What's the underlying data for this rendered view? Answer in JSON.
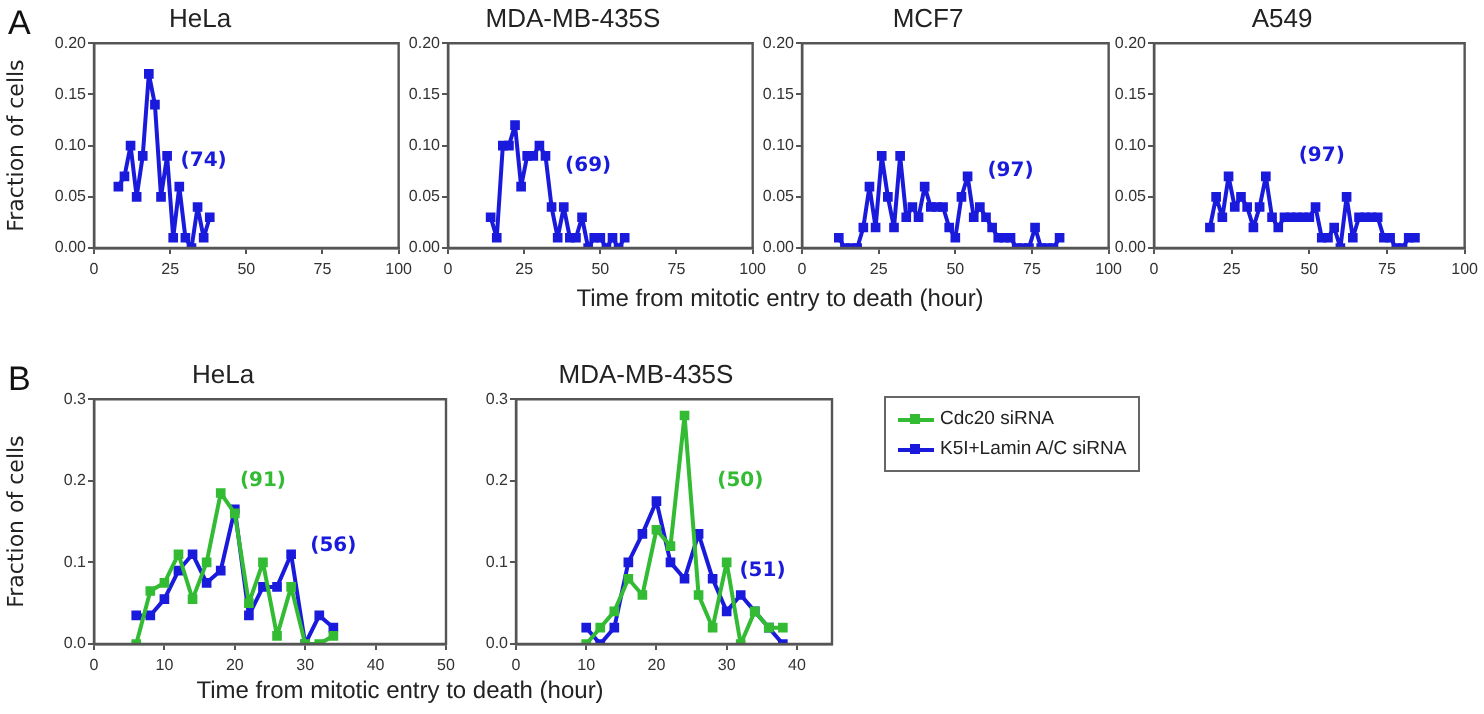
{
  "chart_data": [
    {
      "type": "line",
      "title": "HeLa",
      "ylabel": "Fraction of cells",
      "color": "#1a1adc",
      "marker": "square",
      "line_style": "solid",
      "grid": false,
      "legend": false,
      "x": [
        8,
        10,
        12,
        14,
        16,
        18,
        20,
        22,
        24,
        26,
        28,
        30,
        32,
        34,
        36,
        38
      ],
      "values": [
        0.06,
        0.07,
        0.1,
        0.05,
        0.09,
        0.17,
        0.14,
        0.05,
        0.09,
        0.01,
        0.06,
        0.01,
        0.0,
        0.04,
        0.01,
        0.03
      ],
      "xlim": [
        0,
        100
      ],
      "xticks": [
        0,
        25,
        50,
        75,
        100
      ],
      "ylim": [
        0,
        0.2
      ],
      "yticks": [
        {
          "value": 0,
          "label": "0.00"
        },
        {
          "value": 0.05,
          "label": "0.05"
        },
        {
          "value": 0.1,
          "label": "0.10"
        },
        {
          "value": 0.15,
          "label": "0.15"
        },
        {
          "value": 0.2,
          "label": "0.20"
        }
      ],
      "annotations": [
        "A",
        "(74)"
      ]
    },
    {
      "type": "line",
      "title": "MDA-MB-435S",
      "xlabel": "Time from mitotic entry to death (hour)",
      "color": "#1a1adc",
      "marker": "square",
      "line_style": "solid",
      "grid": false,
      "legend": false,
      "x": [
        14,
        16,
        18,
        20,
        22,
        24,
        26,
        28,
        30,
        32,
        34,
        36,
        38,
        40,
        42,
        44,
        46,
        48,
        50,
        52,
        54,
        56,
        58
      ],
      "values": [
        0.03,
        0.01,
        0.1,
        0.1,
        0.12,
        0.06,
        0.09,
        0.09,
        0.1,
        0.09,
        0.04,
        0.01,
        0.04,
        0.01,
        0.01,
        0.03,
        0.0,
        0.01,
        0.01,
        0.0,
        0.01,
        0.0,
        0.01
      ],
      "xlim": [
        0,
        100
      ],
      "xticks": [
        0,
        25,
        50,
        75,
        100
      ],
      "ylim": [
        0,
        0.2
      ],
      "yticks": [
        {
          "value": 0,
          "label": "0.00"
        },
        {
          "value": 0.05,
          "label": "0.05"
        },
        {
          "value": 0.1,
          "label": "0.10"
        },
        {
          "value": 0.15,
          "label": "0.15"
        },
        {
          "value": 0.2,
          "label": "0.20"
        }
      ],
      "annotations": [
        "(69)"
      ]
    },
    {
      "type": "line",
      "title": "MCF7",
      "color": "#1a1adc",
      "marker": "square",
      "line_style": "solid",
      "grid": false,
      "legend": false,
      "x": [
        12,
        14,
        16,
        18,
        20,
        22,
        24,
        26,
        28,
        30,
        32,
        34,
        36,
        38,
        40,
        42,
        44,
        46,
        48,
        50,
        52,
        54,
        56,
        58,
        60,
        62,
        64,
        66,
        68,
        70,
        72,
        74,
        76,
        78,
        80,
        82,
        84
      ],
      "values": [
        0.01,
        0.0,
        0.0,
        0.0,
        0.02,
        0.06,
        0.02,
        0.09,
        0.05,
        0.02,
        0.09,
        0.03,
        0.04,
        0.03,
        0.06,
        0.04,
        0.04,
        0.04,
        0.02,
        0.01,
        0.05,
        0.07,
        0.03,
        0.04,
        0.03,
        0.02,
        0.01,
        0.01,
        0.01,
        0.0,
        0.0,
        0.0,
        0.02,
        0.0,
        0.0,
        0.0,
        0.01
      ],
      "xlim": [
        0,
        100
      ],
      "xticks": [
        0,
        25,
        50,
        75,
        100
      ],
      "ylim": [
        0,
        0.2
      ],
      "yticks": [
        {
          "value": 0,
          "label": "0.00"
        },
        {
          "value": 0.05,
          "label": "0.05"
        },
        {
          "value": 0.1,
          "label": "0.10"
        },
        {
          "value": 0.15,
          "label": "0.15"
        },
        {
          "value": 0.2,
          "label": "0.20"
        }
      ],
      "annotations": [
        "(97)"
      ]
    },
    {
      "type": "line",
      "title": "A549",
      "color": "#1a1adc",
      "marker": "square",
      "line_style": "solid",
      "grid": false,
      "legend": false,
      "x": [
        18,
        20,
        22,
        24,
        26,
        28,
        30,
        32,
        34,
        36,
        38,
        40,
        42,
        44,
        46,
        48,
        50,
        52,
        54,
        56,
        58,
        60,
        62,
        64,
        66,
        68,
        70,
        72,
        74,
        76,
        78,
        80,
        82,
        84
      ],
      "values": [
        0.02,
        0.05,
        0.03,
        0.07,
        0.04,
        0.05,
        0.04,
        0.02,
        0.04,
        0.07,
        0.03,
        0.02,
        0.03,
        0.03,
        0.03,
        0.03,
        0.03,
        0.04,
        0.01,
        0.01,
        0.02,
        0.0,
        0.05,
        0.01,
        0.03,
        0.03,
        0.03,
        0.03,
        0.01,
        0.01,
        0.0,
        0.0,
        0.01,
        0.01
      ],
      "xlim": [
        0,
        100
      ],
      "xticks": [
        0,
        25,
        50,
        75,
        100
      ],
      "ylim": [
        0,
        0.2
      ],
      "yticks": [
        {
          "value": 0,
          "label": "0.00"
        },
        {
          "value": 0.05,
          "label": "0.05"
        },
        {
          "value": 0.1,
          "label": "0.10"
        },
        {
          "value": 0.15,
          "label": "0.15"
        },
        {
          "value": 0.2,
          "label": "0.20"
        }
      ],
      "annotations": [
        "(97)"
      ]
    },
    {
      "type": "line",
      "title": "HeLa",
      "ylabel": "Fraction of cells",
      "xlabel": "Time from mitotic entry to death (hour)",
      "marker": "square",
      "line_style": "solid",
      "grid": false,
      "legend": false,
      "series": [
        {
          "color": "#33bb33",
          "x": [
            6,
            8,
            10,
            12,
            14,
            16,
            18,
            20,
            22,
            24,
            26,
            28,
            30,
            32,
            34
          ],
          "values": [
            0.0,
            0.065,
            0.075,
            0.11,
            0.055,
            0.1,
            0.185,
            0.16,
            0.05,
            0.1,
            0.01,
            0.07,
            0.0,
            0.0,
            0.01
          ]
        },
        {
          "color": "#1a1adc",
          "x": [
            6,
            8,
            10,
            12,
            14,
            16,
            18,
            20,
            22,
            24,
            26,
            28,
            30,
            32,
            34
          ],
          "values": [
            0.035,
            0.035,
            0.055,
            0.09,
            0.11,
            0.075,
            0.09,
            0.165,
            0.035,
            0.07,
            0.07,
            0.11,
            0.0,
            0.035,
            0.02
          ]
        }
      ],
      "xlim": [
        0,
        50
      ],
      "xticks": [
        0,
        10,
        20,
        30,
        40,
        50
      ],
      "ylim": [
        0,
        0.3
      ],
      "yticks": [
        {
          "value": 0,
          "label": "0.0"
        },
        {
          "value": 0.1,
          "label": "0.1"
        },
        {
          "value": 0.2,
          "label": "0.2"
        },
        {
          "value": 0.3,
          "label": "0.3"
        }
      ],
      "annotations": [
        "B",
        "(91)",
        "(56)"
      ]
    },
    {
      "type": "line",
      "title": "MDA-MB-435S",
      "marker": "square",
      "line_style": "solid",
      "grid": false,
      "legend": "right",
      "series": [
        {
          "name": "Cdc20 siRNA",
          "color": "#33bb33",
          "x": [
            10,
            12,
            14,
            16,
            18,
            20,
            22,
            24,
            26,
            28,
            30,
            32,
            34,
            36,
            38
          ],
          "values": [
            0.0,
            0.02,
            0.04,
            0.08,
            0.06,
            0.14,
            0.12,
            0.28,
            0.06,
            0.02,
            0.1,
            0.0,
            0.04,
            0.02,
            0.02
          ]
        },
        {
          "name": "K5I+Lamin A/C siRNA",
          "color": "#1a1adc",
          "x": [
            10,
            12,
            14,
            16,
            18,
            20,
            22,
            24,
            26,
            28,
            30,
            32,
            34,
            36,
            38
          ],
          "values": [
            0.02,
            0.0,
            0.02,
            0.1,
            0.135,
            0.175,
            0.1,
            0.08,
            0.135,
            0.08,
            0.04,
            0.06,
            0.04,
            0.02,
            0.0
          ]
        }
      ],
      "xlim": [
        0,
        45
      ],
      "xticks": [
        0,
        10,
        20,
        30,
        40
      ],
      "ylim": [
        0,
        0.3
      ],
      "yticks": [
        {
          "value": 0,
          "label": "0.0"
        },
        {
          "value": 0.1,
          "label": "0.1"
        },
        {
          "value": 0.2,
          "label": "0.2"
        },
        {
          "value": 0.3,
          "label": "0.3"
        }
      ],
      "annotations": [
        "(50)",
        "(51)"
      ]
    }
  ]
}
